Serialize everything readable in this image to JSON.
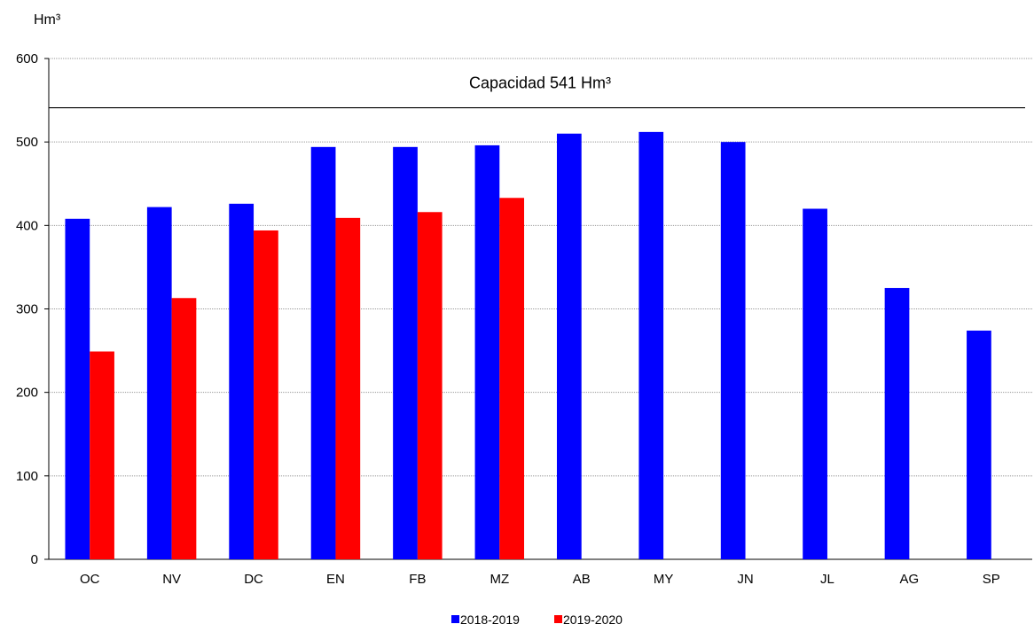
{
  "chart_data": {
    "type": "bar",
    "ylabel": "Hm³",
    "xlabel": "",
    "ylim": [
      0,
      600
    ],
    "yticks": [
      0,
      100,
      200,
      300,
      400,
      500,
      600
    ],
    "grid": "horizontal",
    "legend_position": "bottom-center",
    "categories": [
      "OC",
      "NV",
      "DC",
      "EN",
      "FB",
      "MZ",
      "AB",
      "MY",
      "JN",
      "JL",
      "AG",
      "SP"
    ],
    "series": [
      {
        "name": "2018-2019",
        "color": "#0000ff",
        "values": [
          408,
          422,
          426,
          494,
          494,
          496,
          510,
          512,
          500,
          420,
          325,
          274
        ]
      },
      {
        "name": "2019-2020",
        "color": "#ff0000",
        "values": [
          249,
          313,
          394,
          409,
          416,
          433,
          null,
          null,
          null,
          null,
          null,
          null
        ]
      }
    ],
    "reference_line": {
      "value": 541,
      "label": "Capacidad 541 Hm³",
      "color": "#000000"
    }
  }
}
